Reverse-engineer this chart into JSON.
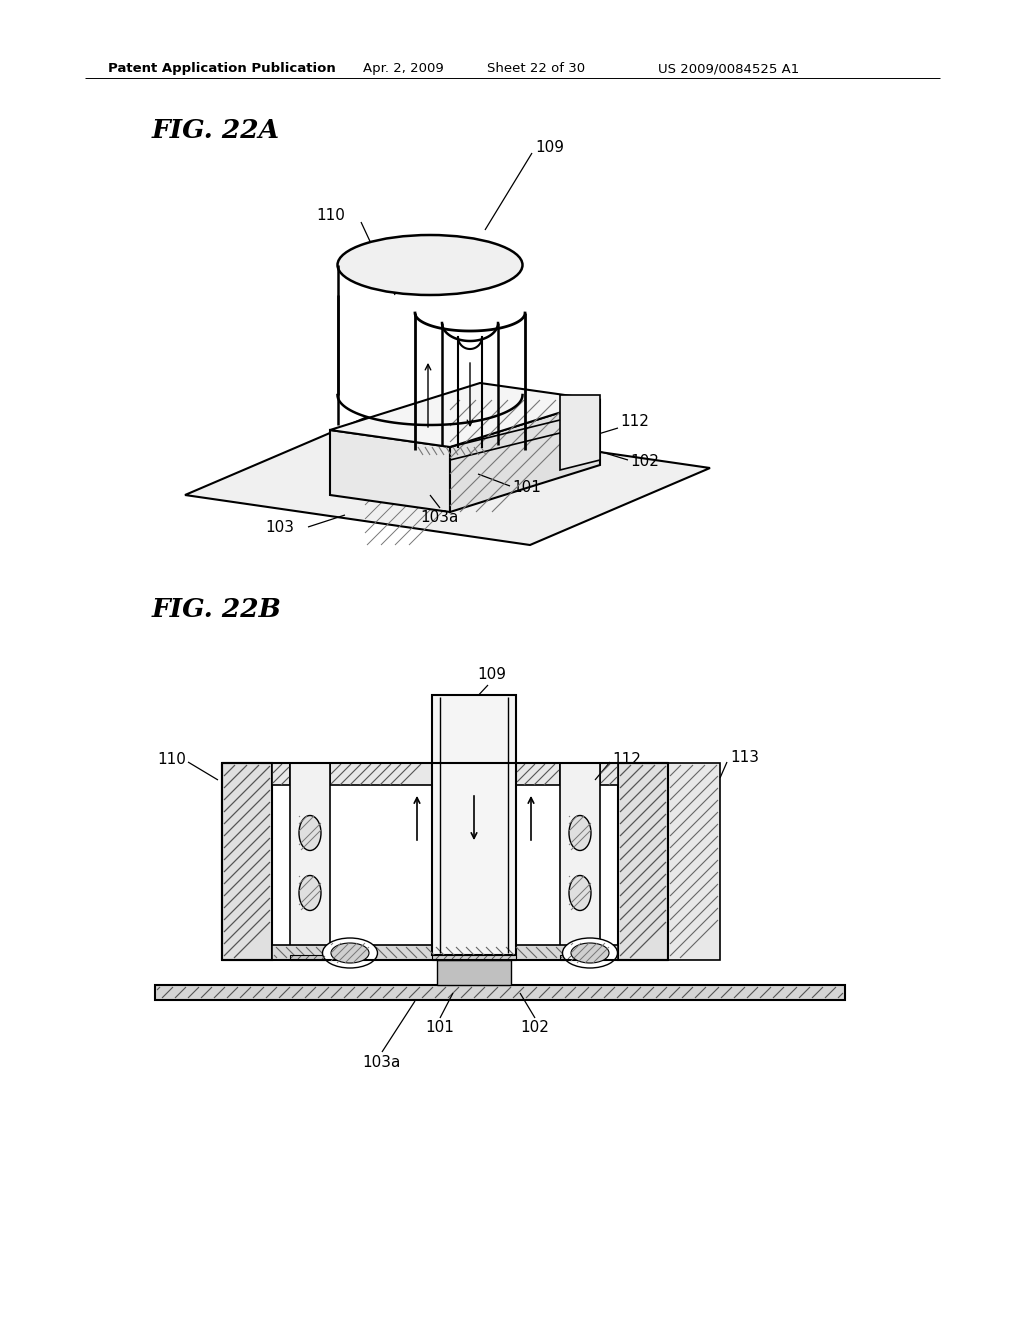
{
  "title_header": "Patent Application Publication",
  "date_header": "Apr. 2, 2009",
  "sheet_header": "Sheet 22 of 30",
  "patent_header": "US 2009/0084525 A1",
  "fig_22a_label": "FIG. 22A",
  "fig_22b_label": "FIG. 22B",
  "bg_color": "#ffffff",
  "line_color": "#000000"
}
